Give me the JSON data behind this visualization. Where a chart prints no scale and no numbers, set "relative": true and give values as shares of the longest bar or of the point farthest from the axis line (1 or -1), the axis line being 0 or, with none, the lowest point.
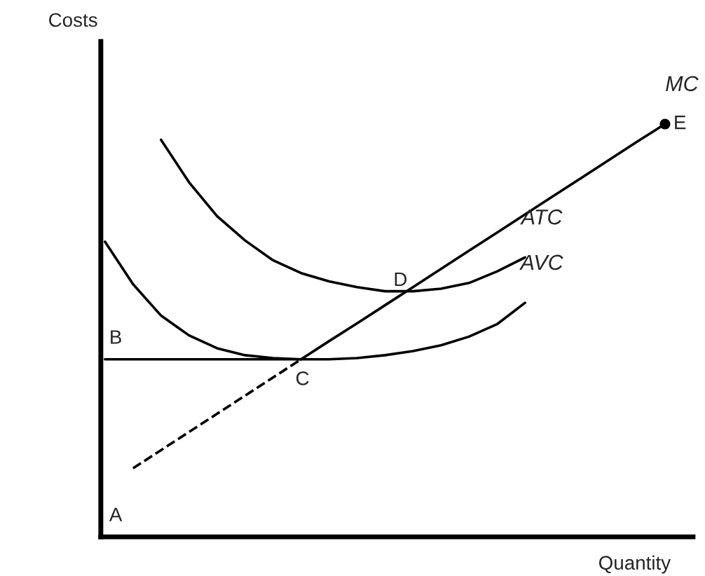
{
  "chart_data": {
    "type": "line",
    "relative": true,
    "xlabel": "Quantity",
    "ylabel": "Costs",
    "legend": false,
    "marker": "none",
    "categories": [
      null,
      null,
      null,
      null,
      null,
      null,
      null,
      null,
      null,
      null,
      null,
      null,
      null,
      null,
      null,
      null,
      null,
      null,
      null,
      null,
      null
    ],
    "series": [
      {
        "name": "MC",
        "color": "#000000",
        "line_style": "solid",
        "values": [
          null,
          null,
          null,
          null,
          null,
          null,
          null,
          0.43,
          0.474,
          0.517,
          0.561,
          0.605,
          0.649,
          0.693,
          0.737,
          0.781,
          0.825,
          0.869,
          0.913,
          0.957,
          1
        ]
      },
      {
        "color": "#000000",
        "line_style": "dashed",
        "values": [
          null,
          0.166,
          0.21,
          0.254,
          0.298,
          0.342,
          0.386,
          0.43,
          null,
          null,
          null,
          null,
          null,
          null,
          null,
          null,
          null,
          null,
          null,
          null,
          null
        ]
      },
      {
        "name": "ATC",
        "color": "#000000",
        "line_style": "solid",
        "values": [
          null,
          null,
          0.962,
          0.859,
          0.777,
          0.718,
          0.67,
          0.639,
          0.619,
          0.605,
          0.595,
          0.595,
          0.601,
          0.615,
          0.643,
          0.677,
          null,
          null,
          null,
          null,
          null
        ]
      },
      {
        "name": "AVC",
        "color": "#000000",
        "line_style": "solid",
        "values": [
          0.715,
          0.612,
          0.536,
          0.488,
          0.457,
          0.44,
          0.433,
          0.43,
          0.43,
          0.433,
          0.44,
          0.45,
          0.464,
          0.485,
          0.515,
          0.567,
          null,
          null,
          null,
          null,
          null
        ]
      },
      {
        "color": "#000000",
        "line_style": "solid",
        "values": [
          0.43,
          0.43,
          0.43,
          0.43,
          0.43,
          0.43,
          0.43,
          0.43,
          null,
          null,
          null,
          null,
          null,
          null,
          null,
          null,
          null,
          null,
          null,
          null,
          null
        ]
      }
    ],
    "annotations": [
      "A",
      "B",
      "C",
      "D",
      "E"
    ]
  }
}
